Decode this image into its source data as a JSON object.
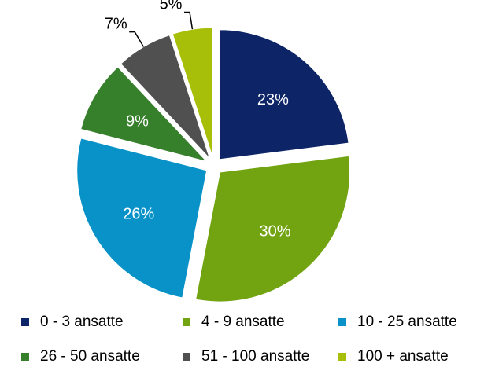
{
  "chart_data": {
    "type": "pie",
    "exploded": true,
    "legend_position": "bottom",
    "slices": [
      {
        "label": "0 - 3 ansatte",
        "value": 23,
        "display": "23%",
        "color": "#0d2567",
        "label_placement": "inside"
      },
      {
        "label": "4 - 9 ansatte",
        "value": 30,
        "display": "30%",
        "color": "#72a411",
        "label_placement": "inside"
      },
      {
        "label": "10 - 25 ansatte",
        "value": 26,
        "display": "26%",
        "color": "#0892c8",
        "label_placement": "inside"
      },
      {
        "label": "26 - 50 ansatte",
        "value": 9,
        "display": "9%",
        "color": "#367f2b",
        "label_placement": "inside"
      },
      {
        "label": "51 - 100 ansatte",
        "value": 7,
        "display": "7%",
        "color": "#505050",
        "label_placement": "outside"
      },
      {
        "label": "100 + ansatte",
        "value": 5,
        "display": "5%",
        "color": "#a7bf09",
        "label_placement": "outside"
      }
    ]
  }
}
